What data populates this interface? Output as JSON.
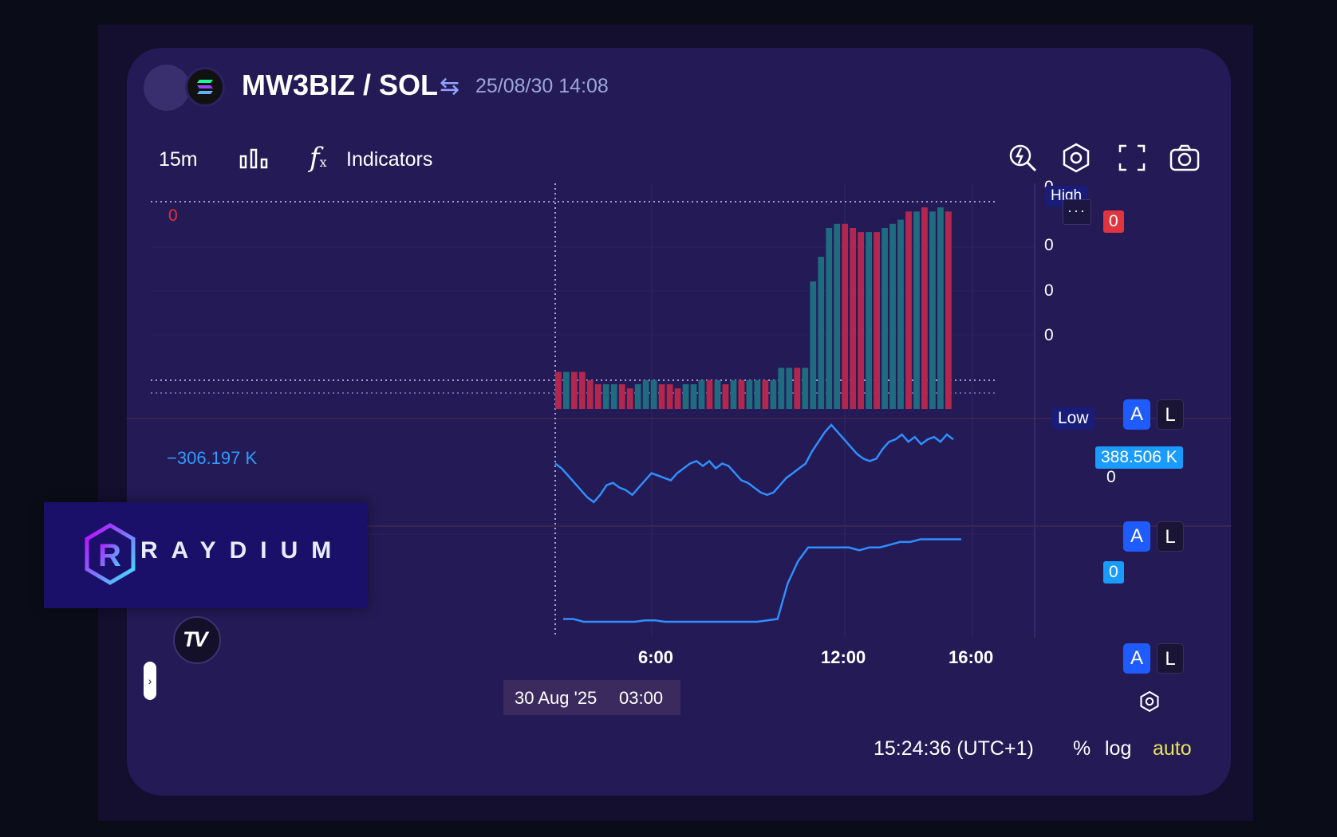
{
  "header": {
    "pair": "MW3BIZ / SOL",
    "swap_icon": "swap-arrows-icon",
    "timestamp": "25/08/30 14:08",
    "token_icon": "solana-icon"
  },
  "toolbar": {
    "interval": "15m",
    "chart_type_icon": "bar-chart-icon",
    "fx_icon": "function-icon",
    "fx_symbol": "f",
    "fx_sub": "x",
    "indicators_label": "Indicators",
    "right_icons": [
      "search-bolt-icon",
      "settings-icon",
      "fullscreen-icon",
      "camera-icon"
    ]
  },
  "price_pane": {
    "last_left_label": "0",
    "high_label": "High",
    "low_label": "Low",
    "more_label": "···",
    "axis_ticks": [
      "0",
      "0",
      "0",
      "0",
      "0"
    ],
    "current_tag": "0",
    "a_label": "A",
    "l_label": "L"
  },
  "indicator_pane_1": {
    "left_value": "−306.197 K",
    "tag_value": "388.506 K",
    "axis_tick": "0",
    "a_label": "A",
    "l_label": "L"
  },
  "indicator_pane_2": {
    "tag_value": "0",
    "a_label": "A",
    "l_label": "L"
  },
  "time_axis": {
    "crosshair_date": "30 Aug '25",
    "crosshair_time": "03:00",
    "labels": [
      "6:00",
      "12:00",
      "16:00"
    ]
  },
  "bottom_bar": {
    "clock": "15:24:36 (UTC+1)",
    "percent": "%",
    "log": "log",
    "auto": "auto"
  },
  "branding": {
    "raydium_text": "RAYDIUM",
    "raydium_letter": "R",
    "tv_text": "TV"
  },
  "side_toggle_label": "›",
  "colors": {
    "panel": "#241a55",
    "up": "#1f6b7f",
    "down": "#b2274e",
    "line": "#2f8fff",
    "accent_blue": "#1f5cff",
    "tag_red": "#e0343f",
    "tag_cyan": "#1a9bff",
    "auto_yellow": "#e8e55a"
  },
  "chart_data": [
    {
      "type": "bar",
      "title": "",
      "interval": "15m",
      "x_labels": [
        "6:00",
        "12:00",
        "16:00"
      ],
      "y_ticks": [
        "0",
        "0",
        "0",
        "0",
        "0"
      ],
      "candles": [
        {
          "v": 9,
          "up": false
        },
        {
          "v": 9,
          "up": true
        },
        {
          "v": 9,
          "up": false
        },
        {
          "v": 9,
          "up": false
        },
        {
          "v": 7,
          "up": false
        },
        {
          "v": 6,
          "up": false
        },
        {
          "v": 6,
          "up": true
        },
        {
          "v": 6,
          "up": true
        },
        {
          "v": 6,
          "up": false
        },
        {
          "v": 5,
          "up": false
        },
        {
          "v": 6,
          "up": true
        },
        {
          "v": 7,
          "up": true
        },
        {
          "v": 7,
          "up": true
        },
        {
          "v": 6,
          "up": false
        },
        {
          "v": 6,
          "up": false
        },
        {
          "v": 5,
          "up": false
        },
        {
          "v": 6,
          "up": true
        },
        {
          "v": 6,
          "up": true
        },
        {
          "v": 7,
          "up": true
        },
        {
          "v": 7,
          "up": false
        },
        {
          "v": 7,
          "up": true
        },
        {
          "v": 6,
          "up": false
        },
        {
          "v": 7,
          "up": true
        },
        {
          "v": 7,
          "up": false
        },
        {
          "v": 7,
          "up": true
        },
        {
          "v": 7,
          "up": true
        },
        {
          "v": 7,
          "up": false
        },
        {
          "v": 7,
          "up": true
        },
        {
          "v": 10,
          "up": true
        },
        {
          "v": 10,
          "up": true
        },
        {
          "v": 10,
          "up": false
        },
        {
          "v": 10,
          "up": true
        },
        {
          "v": 31,
          "up": true
        },
        {
          "v": 37,
          "up": true
        },
        {
          "v": 44,
          "up": true
        },
        {
          "v": 45,
          "up": true
        },
        {
          "v": 45,
          "up": false
        },
        {
          "v": 44,
          "up": false
        },
        {
          "v": 43,
          "up": false
        },
        {
          "v": 43,
          "up": true
        },
        {
          "v": 43,
          "up": false
        },
        {
          "v": 44,
          "up": true
        },
        {
          "v": 45,
          "up": true
        },
        {
          "v": 46,
          "up": true
        },
        {
          "v": 48,
          "up": false
        },
        {
          "v": 48,
          "up": true
        },
        {
          "v": 49,
          "up": false
        },
        {
          "v": 48,
          "up": true
        },
        {
          "v": 49,
          "up": true
        },
        {
          "v": 48,
          "up": false
        }
      ]
    },
    {
      "type": "line",
      "name": "",
      "x_labels": [
        "6:00",
        "12:00",
        "16:00"
      ],
      "values": [
        20,
        18,
        15,
        12,
        9,
        6,
        4,
        7,
        11,
        12,
        10,
        9,
        7,
        10,
        13,
        16,
        15,
        14,
        13,
        16,
        18,
        20,
        21,
        19,
        21,
        18,
        20,
        19,
        16,
        13,
        12,
        10,
        8,
        7,
        8,
        11,
        14,
        16,
        18,
        20,
        25,
        29,
        33,
        36,
        33,
        30,
        27,
        24,
        22,
        21,
        22,
        26,
        29,
        30,
        32,
        29,
        31,
        28,
        30,
        31,
        29,
        32,
        30
      ],
      "last_value": "388.506 K",
      "left_value": "−306.197 K"
    },
    {
      "type": "line",
      "name": "",
      "x_labels": [
        "6:00",
        "12:00",
        "16:00"
      ],
      "values": [
        1,
        1,
        0,
        0,
        0,
        0,
        0,
        0,
        0.5,
        0.5,
        0,
        0,
        0,
        0,
        0,
        0,
        0,
        0,
        0,
        0,
        0.5,
        1,
        14,
        22,
        27,
        27,
        27,
        27,
        27,
        26,
        27,
        27,
        28,
        29,
        29,
        30,
        30,
        30,
        30,
        30
      ],
      "last_value": "0"
    }
  ]
}
